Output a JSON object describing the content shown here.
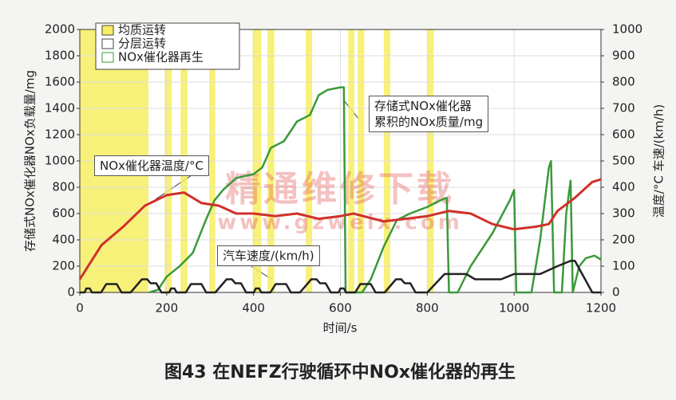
{
  "chart_data": {
    "type": "line",
    "caption": "图43 在NEFZ行驶循环中NOx催化器的再生",
    "xlabel": "时间/s",
    "ylabel": "存储式NOx催化器NOx负载量/mg",
    "y2label": "温度/°C  车速/(km/h)",
    "watermark": [
      "精通维修下载",
      "www.gzweix.com"
    ],
    "xlim": [
      0,
      1200
    ],
    "xticks": [
      0,
      200,
      400,
      600,
      800,
      1000,
      1200
    ],
    "ylim": [
      0,
      2000
    ],
    "yticks": [
      0,
      200,
      400,
      600,
      800,
      1000,
      1200,
      1400,
      1600,
      1800,
      2000
    ],
    "y2lim": [
      0,
      1000
    ],
    "y2ticks": [
      0,
      100,
      200,
      300,
      400,
      500,
      600,
      700,
      800,
      900,
      1000
    ],
    "grid": true,
    "modes": [
      {
        "name": "均质运转",
        "color": "#f7ee62"
      },
      {
        "name": "分层运转",
        "color": "#ffffff"
      },
      {
        "name": "NOx催化器再生",
        "color": "#ffffff"
      }
    ],
    "bands": [
      [
        0,
        158
      ],
      [
        195,
        212
      ],
      [
        232,
        248
      ],
      [
        298,
        312
      ],
      [
        398,
        418
      ],
      [
        432,
        448
      ],
      [
        520,
        535
      ],
      [
        618,
        632
      ],
      [
        640,
        655
      ],
      [
        700,
        715
      ],
      [
        800,
        815
      ]
    ],
    "series": [
      {
        "name": "存储式NOx催化器\n累积的NOx质量/mg",
        "color": "#3a9a3a",
        "x": [
          160,
          180,
          200,
          230,
          260,
          290,
          310,
          330,
          360,
          400,
          420,
          440,
          470,
          500,
          530,
          550,
          570,
          600,
          608,
          612,
          650,
          670,
          700,
          730,
          760,
          800,
          830,
          845,
          850,
          870,
          900,
          950,
          990,
          1000,
          1005,
          1040,
          1060,
          1080,
          1085,
          1092,
          1110,
          1120,
          1130,
          1135,
          1150,
          1165,
          1185,
          1200
        ],
        "values": [
          0,
          20,
          120,
          200,
          300,
          550,
          700,
          780,
          870,
          900,
          950,
          1100,
          1150,
          1300,
          1350,
          1500,
          1540,
          1560,
          1560,
          0,
          0,
          100,
          350,
          550,
          600,
          650,
          700,
          720,
          0,
          0,
          200,
          450,
          700,
          780,
          0,
          0,
          400,
          950,
          1000,
          0,
          0,
          600,
          850,
          0,
          200,
          260,
          280,
          250
        ]
      },
      {
        "name": "NOx催化器温度/°C",
        "color": "#d0302a",
        "axis": "y2",
        "x": [
          0,
          50,
          100,
          150,
          200,
          240,
          280,
          320,
          360,
          400,
          450,
          500,
          550,
          600,
          630,
          700,
          750,
          800,
          850,
          900,
          950,
          1000,
          1050,
          1080,
          1100,
          1140,
          1180,
          1200
        ],
        "values": [
          50,
          180,
          250,
          330,
          370,
          380,
          340,
          330,
          300,
          300,
          290,
          300,
          280,
          290,
          300,
          270,
          280,
          290,
          310,
          300,
          260,
          240,
          250,
          260,
          310,
          360,
          420,
          430
        ]
      },
      {
        "name": "汽车速度/(km/h)",
        "color": "#222222",
        "axis": "y2",
        "x": [
          0,
          11,
          15,
          23,
          28,
          49,
          61,
          85,
          96,
          117,
          143,
          155,
          163,
          176,
          188,
          195,
          206,
          210,
          218,
          223,
          244,
          256,
          280,
          291,
          312,
          338,
          350,
          358,
          371,
          383,
          390,
          401,
          405,
          413,
          418,
          439,
          451,
          475,
          486,
          507,
          533,
          545,
          553,
          566,
          578,
          585,
          596,
          600,
          608,
          613,
          634,
          646,
          670,
          681,
          702,
          728,
          740,
          748,
          761,
          773,
          780,
          800,
          840,
          890,
          910,
          970,
          1000,
          1060,
          1100,
          1130,
          1140,
          1180,
          1200
        ],
        "values": [
          0,
          0,
          15,
          15,
          0,
          0,
          32,
          32,
          0,
          0,
          50,
          50,
          35,
          35,
          0,
          0,
          0,
          15,
          15,
          0,
          0,
          32,
          32,
          0,
          0,
          50,
          50,
          35,
          35,
          0,
          0,
          0,
          15,
          15,
          0,
          0,
          32,
          32,
          0,
          0,
          50,
          50,
          35,
          35,
          0,
          0,
          0,
          15,
          15,
          0,
          0,
          32,
          32,
          0,
          0,
          50,
          50,
          35,
          35,
          0,
          0,
          0,
          70,
          70,
          50,
          50,
          70,
          70,
          100,
          120,
          120,
          0,
          0
        ]
      }
    ]
  }
}
